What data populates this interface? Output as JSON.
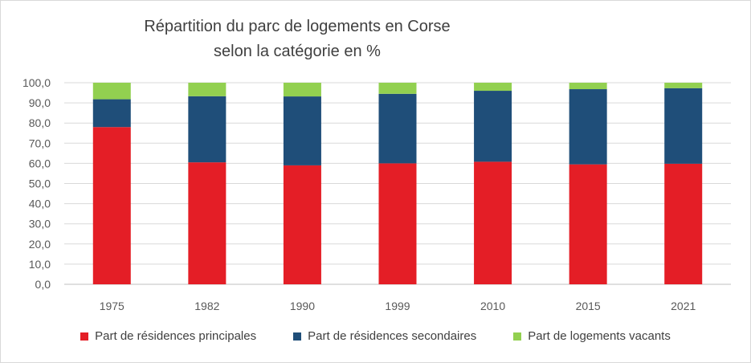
{
  "chart_data": {
    "type": "bar",
    "stacked": true,
    "title_line1": "Répartition du parc de logements en Corse",
    "title_line2": "selon la catégorie en %",
    "categories": [
      "1975",
      "1982",
      "1990",
      "1999",
      "2010",
      "2015",
      "2021"
    ],
    "series": [
      {
        "name": "Part de résidences principales",
        "color": "#e41e26",
        "values": [
          78.0,
          60.5,
          59.0,
          60.0,
          60.8,
          59.5,
          59.8
        ]
      },
      {
        "name": "Part de résidences secondaires",
        "color": "#1f4e79",
        "values": [
          13.8,
          32.8,
          34.2,
          34.5,
          35.2,
          37.3,
          37.5
        ]
      },
      {
        "name": "Part de logements vacants",
        "color": "#92d050",
        "values": [
          8.2,
          6.7,
          6.8,
          5.5,
          4.0,
          3.2,
          2.7
        ]
      }
    ],
    "yticks": [
      "0,0",
      "10,0",
      "20,0",
      "30,0",
      "40,0",
      "50,0",
      "60,0",
      "70,0",
      "80,0",
      "90,0",
      "100,0"
    ],
    "ylim": [
      0,
      100
    ],
    "grid": true,
    "legend_position": "bottom"
  }
}
